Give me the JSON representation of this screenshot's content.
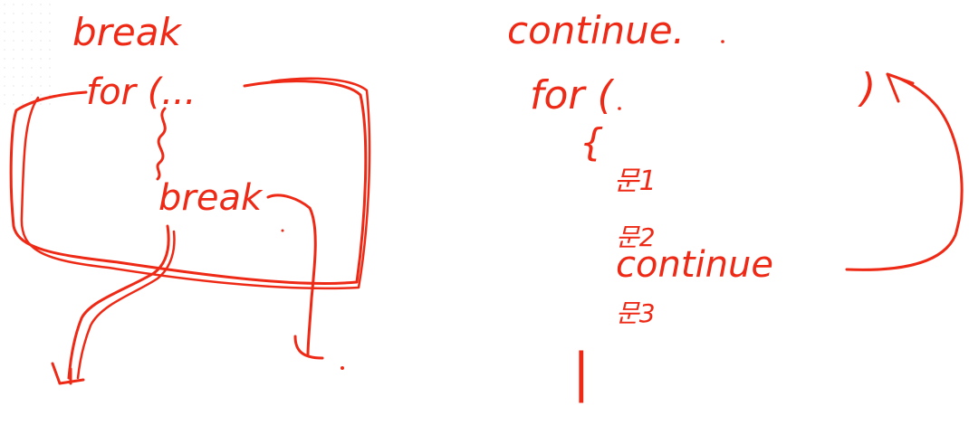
{
  "ink_color": "#ee2a16",
  "left_panel": {
    "heading": "break",
    "loop_header": "for (...",
    "inner_keyword": "break"
  },
  "right_panel": {
    "heading": "continue.",
    "loop_header": "for (",
    "loop_header_close": ")",
    "open_brace": "{",
    "statement_1": "문1",
    "statement_2": "문2",
    "inner_keyword": "continue",
    "statement_3": "문3",
    "close_brace": "|"
  }
}
